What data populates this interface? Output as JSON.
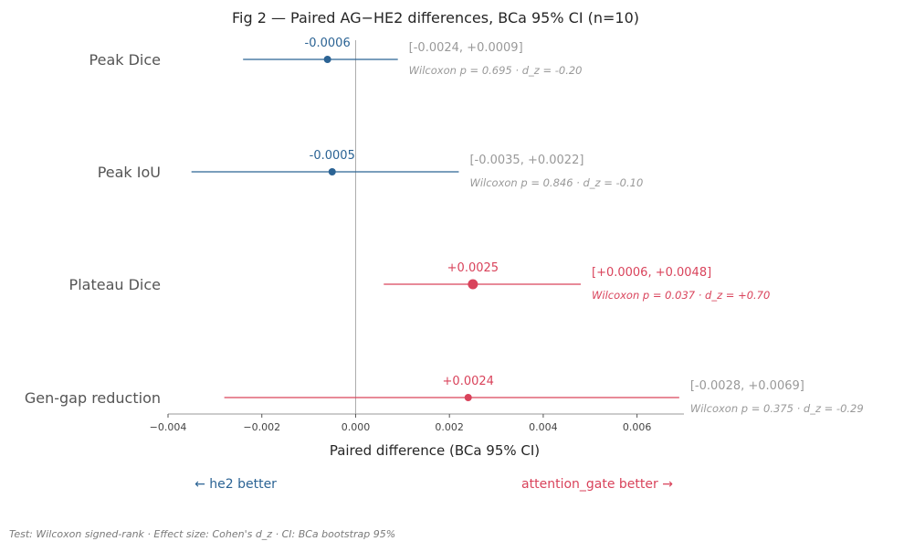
{
  "chart_data": {
    "type": "forest",
    "title": "Fig 2 — Paired AG−HE2 differences, BCa 95% CI (n=10)",
    "xlabel": "Paired difference  (BCa 95% CI)",
    "xlim": [
      -0.004,
      0.007
    ],
    "xticks": [
      -0.004,
      -0.002,
      0.0,
      0.002,
      0.004,
      0.006
    ],
    "xtick_labels": [
      "−0.004",
      "−0.002",
      "0.000",
      "0.002",
      "0.004",
      "0.006"
    ],
    "reference_line": 0,
    "grid": false,
    "direction_labels": {
      "left": "← he2 better",
      "right": "attention_gate better →"
    },
    "colors": {
      "he2_better": "#2b6394",
      "ag_better": "#d9435b",
      "nonsig_text": "#999999"
    },
    "rows": [
      {
        "label": "Peak Dice",
        "estimate": -0.0006,
        "estimate_label": "-0.0006",
        "ci_low": -0.0024,
        "ci_high": 0.0009,
        "ci_label": "[-0.0024, +0.0009]",
        "stats_label": "Wilcoxon p = 0.695  ·  d_z = -0.20",
        "significant": false
      },
      {
        "label": "Peak IoU",
        "estimate": -0.0005,
        "estimate_label": "-0.0005",
        "ci_low": -0.0035,
        "ci_high": 0.0022,
        "ci_label": "[-0.0035, +0.0022]",
        "stats_label": "Wilcoxon p = 0.846  ·  d_z = -0.10",
        "significant": false
      },
      {
        "label": "Plateau Dice",
        "estimate": 0.0025,
        "estimate_label": "+0.0025",
        "ci_low": 0.0006,
        "ci_high": 0.0048,
        "ci_label": "[+0.0006, +0.0048]",
        "stats_label": "Wilcoxon p = 0.037  ·  d_z = +0.70",
        "significant": true
      },
      {
        "label": "Gen-gap reduction",
        "estimate": 0.0024,
        "estimate_label": "+0.0024",
        "ci_low": -0.0028,
        "ci_high": 0.0069,
        "ci_label": "[-0.0028, +0.0069]",
        "stats_label": "Wilcoxon p = 0.375  ·  d_z = -0.29",
        "significant": false
      }
    ]
  },
  "footer": "Test: Wilcoxon signed-rank  ·  Effect size: Cohen's d_z  ·  CI: BCa bootstrap 95%"
}
